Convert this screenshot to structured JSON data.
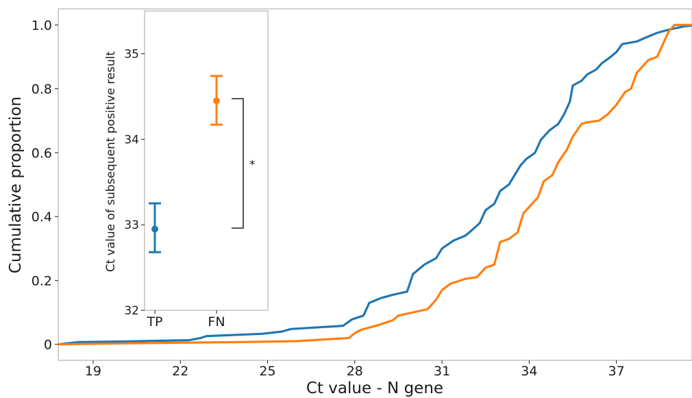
{
  "chart_data": [
    {
      "type": "line",
      "role": "main",
      "xlabel": "Ct value - N gene",
      "ylabel": "Cumulative proportion",
      "xlim": [
        17.8,
        39.6
      ],
      "ylim": [
        -0.05,
        1.05
      ],
      "x_ticks": [
        19,
        22,
        25,
        28,
        31,
        34,
        37
      ],
      "y_ticks": [
        0,
        0.2,
        0.4,
        0.6,
        0.8,
        1.0
      ],
      "y_tick_labels": [
        "0",
        "0.2",
        "0.4",
        "0.6",
        "0.8",
        "1.0"
      ],
      "grid": false,
      "series": [
        {
          "color": "#1f77b4",
          "points": [
            [
              17.8,
              0.0
            ],
            [
              18.5,
              0.007
            ],
            [
              20.0,
              0.009
            ],
            [
              22.3,
              0.013
            ],
            [
              22.7,
              0.02
            ],
            [
              22.9,
              0.026
            ],
            [
              24.8,
              0.033
            ],
            [
              25.5,
              0.04
            ],
            [
              25.8,
              0.048
            ],
            [
              27.6,
              0.058
            ],
            [
              27.9,
              0.078
            ],
            [
              28.3,
              0.09
            ],
            [
              28.5,
              0.13
            ],
            [
              28.9,
              0.145
            ],
            [
              29.3,
              0.155
            ],
            [
              29.8,
              0.165
            ],
            [
              30.0,
              0.22
            ],
            [
              30.4,
              0.25
            ],
            [
              30.8,
              0.27
            ],
            [
              31.0,
              0.3
            ],
            [
              31.4,
              0.325
            ],
            [
              31.8,
              0.34
            ],
            [
              32.0,
              0.355
            ],
            [
              32.3,
              0.38
            ],
            [
              32.5,
              0.42
            ],
            [
              32.8,
              0.44
            ],
            [
              33.0,
              0.48
            ],
            [
              33.3,
              0.5
            ],
            [
              33.5,
              0.53
            ],
            [
              33.7,
              0.56
            ],
            [
              33.9,
              0.58
            ],
            [
              34.2,
              0.6
            ],
            [
              34.4,
              0.64
            ],
            [
              34.7,
              0.67
            ],
            [
              35.0,
              0.69
            ],
            [
              35.2,
              0.72
            ],
            [
              35.4,
              0.76
            ],
            [
              35.5,
              0.81
            ],
            [
              35.8,
              0.825
            ],
            [
              36.0,
              0.845
            ],
            [
              36.3,
              0.86
            ],
            [
              36.5,
              0.88
            ],
            [
              36.8,
              0.9
            ],
            [
              37.0,
              0.915
            ],
            [
              37.2,
              0.94
            ],
            [
              37.7,
              0.948
            ],
            [
              38.0,
              0.96
            ],
            [
              38.4,
              0.975
            ],
            [
              38.8,
              0.985
            ],
            [
              39.3,
              0.995
            ],
            [
              39.6,
              0.998
            ]
          ]
        },
        {
          "color": "#ff7f0e",
          "points": [
            [
              17.8,
              0.0
            ],
            [
              20.0,
              0.003
            ],
            [
              24.0,
              0.007
            ],
            [
              26.0,
              0.01
            ],
            [
              27.8,
              0.02
            ],
            [
              28.0,
              0.035
            ],
            [
              28.2,
              0.045
            ],
            [
              28.8,
              0.06
            ],
            [
              29.3,
              0.075
            ],
            [
              29.5,
              0.09
            ],
            [
              30.0,
              0.1
            ],
            [
              30.5,
              0.11
            ],
            [
              30.8,
              0.14
            ],
            [
              31.0,
              0.17
            ],
            [
              31.3,
              0.19
            ],
            [
              31.8,
              0.205
            ],
            [
              32.2,
              0.21
            ],
            [
              32.5,
              0.24
            ],
            [
              32.8,
              0.25
            ],
            [
              33.0,
              0.32
            ],
            [
              33.3,
              0.33
            ],
            [
              33.6,
              0.35
            ],
            [
              33.8,
              0.41
            ],
            [
              34.0,
              0.43
            ],
            [
              34.3,
              0.46
            ],
            [
              34.5,
              0.51
            ],
            [
              34.8,
              0.53
            ],
            [
              35.0,
              0.57
            ],
            [
              35.3,
              0.61
            ],
            [
              35.5,
              0.65
            ],
            [
              35.8,
              0.69
            ],
            [
              36.0,
              0.695
            ],
            [
              36.4,
              0.7
            ],
            [
              36.7,
              0.72
            ],
            [
              37.0,
              0.75
            ],
            [
              37.3,
              0.79
            ],
            [
              37.5,
              0.8
            ],
            [
              37.7,
              0.85
            ],
            [
              37.9,
              0.87
            ],
            [
              38.1,
              0.89
            ],
            [
              38.4,
              0.9
            ],
            [
              38.6,
              0.94
            ],
            [
              38.8,
              0.98
            ],
            [
              39.0,
              1.0
            ],
            [
              39.6,
              1.0
            ]
          ]
        }
      ]
    },
    {
      "type": "scatter",
      "role": "inset",
      "ylabel": "Ct value of subsequent positive result",
      "categories": [
        "TP",
        "FN"
      ],
      "ylim": [
        32.0,
        35.5
      ],
      "y_ticks": [
        32,
        33,
        34,
        35
      ],
      "grid": false,
      "points": [
        {
          "category": "TP",
          "value": 32.95,
          "err_low": 32.68,
          "err_high": 33.25,
          "color": "#1f77b4"
        },
        {
          "category": "FN",
          "value": 34.45,
          "err_low": 34.17,
          "err_high": 34.74,
          "color": "#ff7f0e"
        }
      ],
      "annotation": "*"
    }
  ]
}
